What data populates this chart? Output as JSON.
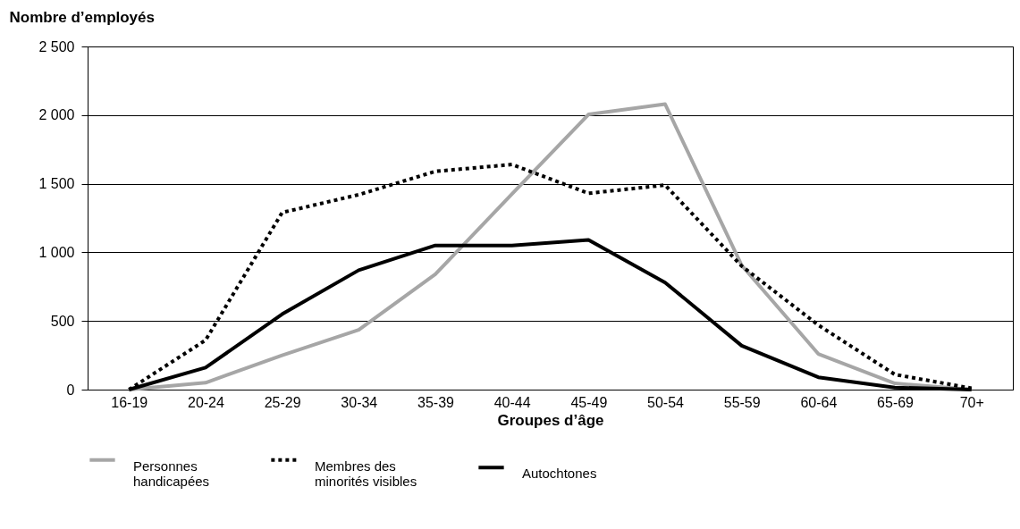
{
  "chart_data": {
    "type": "line",
    "xlabel": "Groupes d’âge",
    "ylabel": "Nombre d’employés",
    "categories": [
      "16-19",
      "20-24",
      "25-29",
      "30-34",
      "35-39",
      "40-44",
      "45-49",
      "50-54",
      "55-59",
      "60-64",
      "65-69",
      "70+"
    ],
    "series": [
      {
        "name": "Personnes handicapées",
        "color": "#a6a6a6",
        "line_style": "solid",
        "values": [
          0,
          50,
          250,
          435,
          840,
          1425,
          2005,
          2080,
          905,
          260,
          45,
          0
        ]
      },
      {
        "name": "Membres des minorités visibles",
        "color": "#000000",
        "line_style": "dotted",
        "values": [
          0,
          360,
          1290,
          1420,
          1590,
          1640,
          1430,
          1490,
          900,
          470,
          110,
          10
        ]
      },
      {
        "name": "Autochtones",
        "color": "#000000",
        "line_style": "solid",
        "values": [
          0,
          160,
          550,
          870,
          1050,
          1050,
          1090,
          780,
          320,
          90,
          15,
          0
        ]
      }
    ],
    "ylim": [
      0,
      2500
    ],
    "yticks": [
      0,
      500,
      {
        "value": 1000,
        "label": "1 000"
      },
      {
        "value": 1500,
        "label": "1 500"
      },
      {
        "value": 2000,
        "label": "2 000"
      },
      {
        "value": 2500,
        "label": "2 500"
      }
    ],
    "grid": "y",
    "legend": "bottom",
    "marker": "none"
  }
}
